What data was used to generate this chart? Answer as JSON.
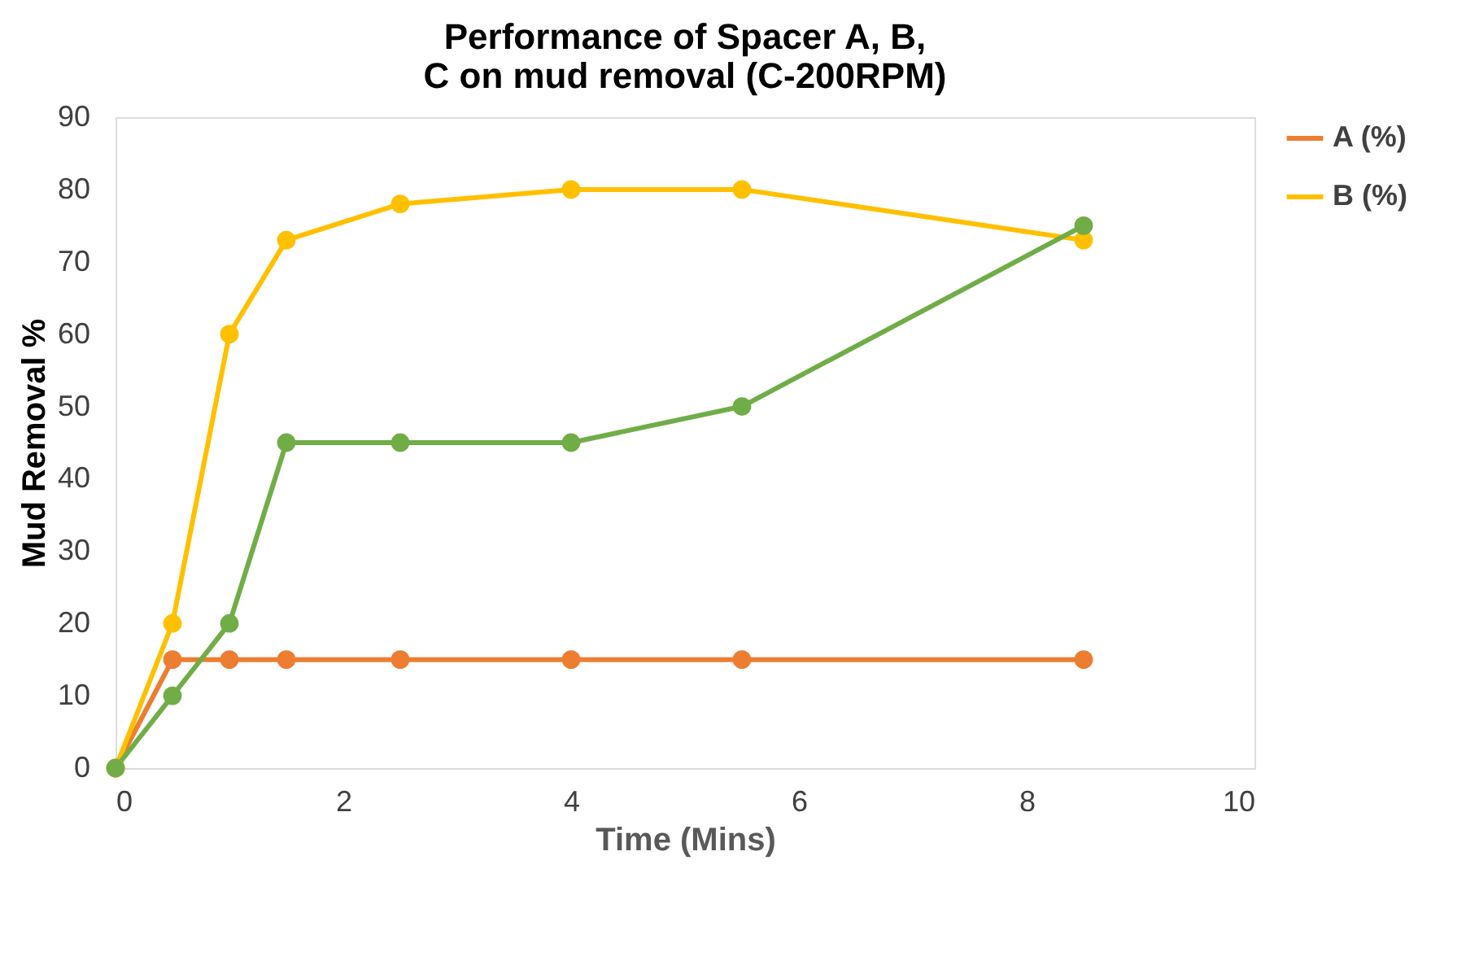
{
  "chart_data": {
    "type": "line",
    "title": "Performance of Spacer A, B, C on mud removal (C-200RPM)",
    "xlabel": "Time (Mins)",
    "ylabel": "Mud Removal %",
    "x": [
      0,
      0.5,
      1,
      1.5,
      2.5,
      4,
      5.5,
      8.5
    ],
    "series": [
      {
        "name": "A (%)",
        "color": "#ed7d31",
        "values": [
          0,
          15,
          15,
          15,
          15,
          15,
          15,
          15
        ]
      },
      {
        "name": "B (%)",
        "color": "#ffc000",
        "values": [
          0,
          20,
          60,
          73,
          78,
          80,
          80,
          73
        ]
      },
      {
        "color": "#70ad47",
        "values": [
          0,
          10,
          20,
          45,
          45,
          45,
          50,
          75
        ]
      }
    ],
    "xlim": [
      0,
      10
    ],
    "xticks": [
      0,
      2,
      4,
      6,
      8,
      10
    ],
    "ylim": [
      0,
      90
    ],
    "yticks": [
      0,
      10,
      20,
      30,
      40,
      50,
      60,
      70,
      80,
      90
    ],
    "grid": false,
    "legend": "right",
    "marker": "circle",
    "line_style": "solid"
  }
}
